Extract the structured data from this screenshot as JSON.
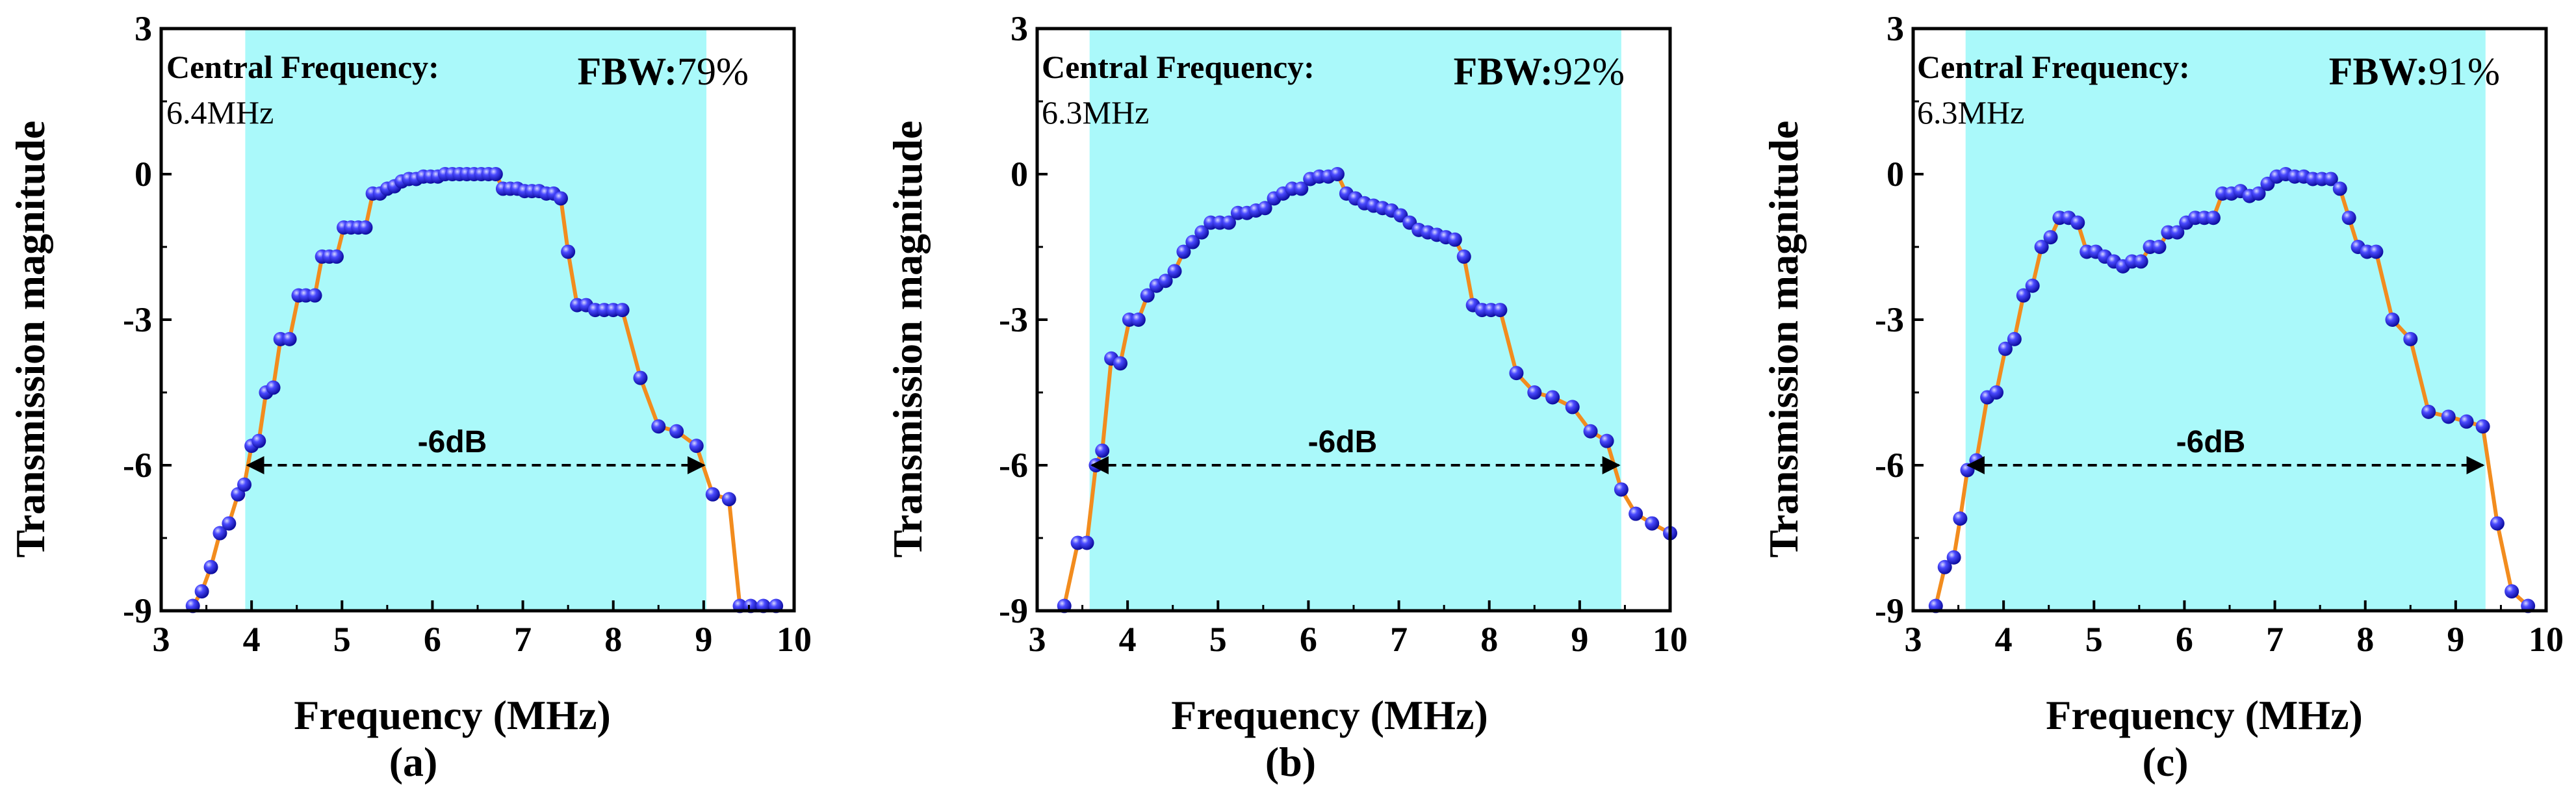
{
  "colors": {
    "band": "#aaf9fa",
    "line": "#f28c1e",
    "marker": "#2222ee",
    "marker_highlight": "#c8c8ff",
    "axis": "#000000"
  },
  "shared": {
    "xlabel": "Frequency (MHz)",
    "ylabel": "Transmission magnitude",
    "xlim": [
      3,
      10
    ],
    "ylim": [
      -9,
      3
    ],
    "x_ticks": [
      "3",
      "4",
      "5",
      "6",
      "7",
      "8",
      "9",
      "10"
    ],
    "y_ticks": [
      "-9",
      "-6",
      "-3",
      "0",
      "3"
    ],
    "central_label": "Central Frequency:",
    "fbw_prefix": "FBW:",
    "db_label": "-6dB"
  },
  "chart_data": [
    {
      "type": "line",
      "panel": "(a)",
      "central_frequency": "6.4MHz",
      "fbw": "79%",
      "band": [
        3.93,
        9.03
      ],
      "arrow_level": -6,
      "x": [
        3.35,
        3.45,
        3.55,
        3.65,
        3.75,
        3.85,
        3.92,
        4.0,
        4.08,
        4.16,
        4.24,
        4.32,
        4.42,
        4.52,
        4.6,
        4.7,
        4.78,
        4.86,
        4.94,
        5.02,
        5.1,
        5.18,
        5.26,
        5.34,
        5.42,
        5.5,
        5.58,
        5.66,
        5.74,
        5.82,
        5.9,
        5.98,
        6.06,
        6.14,
        6.22,
        6.3,
        6.38,
        6.46,
        6.54,
        6.62,
        6.7,
        6.78,
        6.86,
        6.94,
        7.02,
        7.1,
        7.18,
        7.26,
        7.34,
        7.42,
        7.5,
        7.6,
        7.7,
        7.8,
        7.9,
        8.0,
        8.1,
        8.3,
        8.5,
        8.7,
        8.92,
        9.1,
        9.28,
        9.4,
        9.52,
        9.66,
        9.8
      ],
      "y": [
        -8.9,
        -8.6,
        -8.1,
        -7.4,
        -7.2,
        -6.6,
        -6.4,
        -5.6,
        -5.5,
        -4.5,
        -4.4,
        -3.4,
        -3.4,
        -2.5,
        -2.5,
        -2.5,
        -1.7,
        -1.7,
        -1.7,
        -1.1,
        -1.1,
        -1.1,
        -1.1,
        -0.4,
        -0.4,
        -0.3,
        -0.25,
        -0.15,
        -0.1,
        -0.1,
        -0.05,
        -0.05,
        -0.05,
        0,
        0,
        0,
        0,
        0,
        0,
        0,
        0,
        -0.3,
        -0.3,
        -0.3,
        -0.35,
        -0.35,
        -0.35,
        -0.4,
        -0.4,
        -0.5,
        -1.6,
        -2.7,
        -2.7,
        -2.8,
        -2.8,
        -2.8,
        -2.8,
        -4.2,
        -5.2,
        -5.3,
        -5.6,
        -6.6,
        -6.7,
        -8.9,
        -8.9,
        -8.9,
        -8.9
      ]
    },
    {
      "type": "line",
      "panel": "(b)",
      "central_frequency": "6.3MHz",
      "fbw": "92%",
      "band": [
        3.58,
        9.46
      ],
      "arrow_level": -6,
      "x": [
        3.3,
        3.45,
        3.55,
        3.65,
        3.72,
        3.82,
        3.92,
        4.02,
        4.12,
        4.22,
        4.32,
        4.42,
        4.52,
        4.62,
        4.72,
        4.82,
        4.92,
        5.02,
        5.12,
        5.22,
        5.32,
        5.42,
        5.52,
        5.62,
        5.72,
        5.82,
        5.92,
        6.02,
        6.12,
        6.22,
        6.32,
        6.42,
        6.52,
        6.62,
        6.72,
        6.82,
        6.92,
        7.02,
        7.12,
        7.22,
        7.32,
        7.42,
        7.52,
        7.62,
        7.72,
        7.82,
        7.92,
        8.02,
        8.12,
        8.3,
        8.5,
        8.7,
        8.92,
        9.12,
        9.3,
        9.46,
        9.62,
        9.8,
        10.0
      ],
      "y": [
        -8.9,
        -7.6,
        -7.6,
        -6.0,
        -5.7,
        -3.8,
        -3.9,
        -3.0,
        -3.0,
        -2.5,
        -2.3,
        -2.2,
        -2.0,
        -1.6,
        -1.4,
        -1.2,
        -1.0,
        -1.0,
        -1.0,
        -0.8,
        -0.8,
        -0.75,
        -0.7,
        -0.5,
        -0.4,
        -0.3,
        -0.3,
        -0.1,
        -0.05,
        -0.05,
        0,
        -0.4,
        -0.5,
        -0.6,
        -0.65,
        -0.7,
        -0.75,
        -0.85,
        -1.0,
        -1.15,
        -1.2,
        -1.25,
        -1.3,
        -1.35,
        -1.7,
        -2.7,
        -2.8,
        -2.8,
        -2.8,
        -4.1,
        -4.5,
        -4.6,
        -4.8,
        -5.3,
        -5.5,
        -6.5,
        -7.0,
        -7.2,
        -7.4
      ]
    },
    {
      "type": "line",
      "panel": "(c)",
      "central_frequency": "6.3MHz",
      "fbw": "91%",
      "band": [
        3.58,
        9.33
      ],
      "arrow_level": -6,
      "x": [
        3.25,
        3.35,
        3.45,
        3.52,
        3.6,
        3.7,
        3.82,
        3.92,
        4.02,
        4.12,
        4.22,
        4.32,
        4.42,
        4.52,
        4.62,
        4.72,
        4.82,
        4.92,
        5.02,
        5.12,
        5.22,
        5.32,
        5.42,
        5.52,
        5.62,
        5.72,
        5.82,
        5.92,
        6.02,
        6.12,
        6.22,
        6.32,
        6.42,
        6.52,
        6.62,
        6.72,
        6.82,
        6.92,
        7.02,
        7.12,
        7.22,
        7.32,
        7.42,
        7.52,
        7.62,
        7.72,
        7.82,
        7.92,
        8.02,
        8.12,
        8.3,
        8.5,
        8.7,
        8.92,
        9.12,
        9.3,
        9.46,
        9.62,
        9.8
      ],
      "y": [
        -8.9,
        -8.1,
        -7.9,
        -7.1,
        -6.1,
        -5.9,
        -4.6,
        -4.5,
        -3.6,
        -3.4,
        -2.5,
        -2.3,
        -1.5,
        -1.3,
        -0.9,
        -0.9,
        -1.0,
        -1.6,
        -1.6,
        -1.7,
        -1.8,
        -1.9,
        -1.8,
        -1.8,
        -1.5,
        -1.5,
        -1.2,
        -1.2,
        -1.0,
        -0.9,
        -0.9,
        -0.9,
        -0.4,
        -0.4,
        -0.35,
        -0.45,
        -0.4,
        -0.2,
        -0.05,
        0,
        -0.05,
        -0.05,
        -0.1,
        -0.1,
        -0.1,
        -0.3,
        -0.9,
        -1.5,
        -1.6,
        -1.6,
        -3.0,
        -3.4,
        -4.9,
        -5.0,
        -5.1,
        -5.2,
        -7.2,
        -8.6,
        -8.9
      ]
    }
  ]
}
